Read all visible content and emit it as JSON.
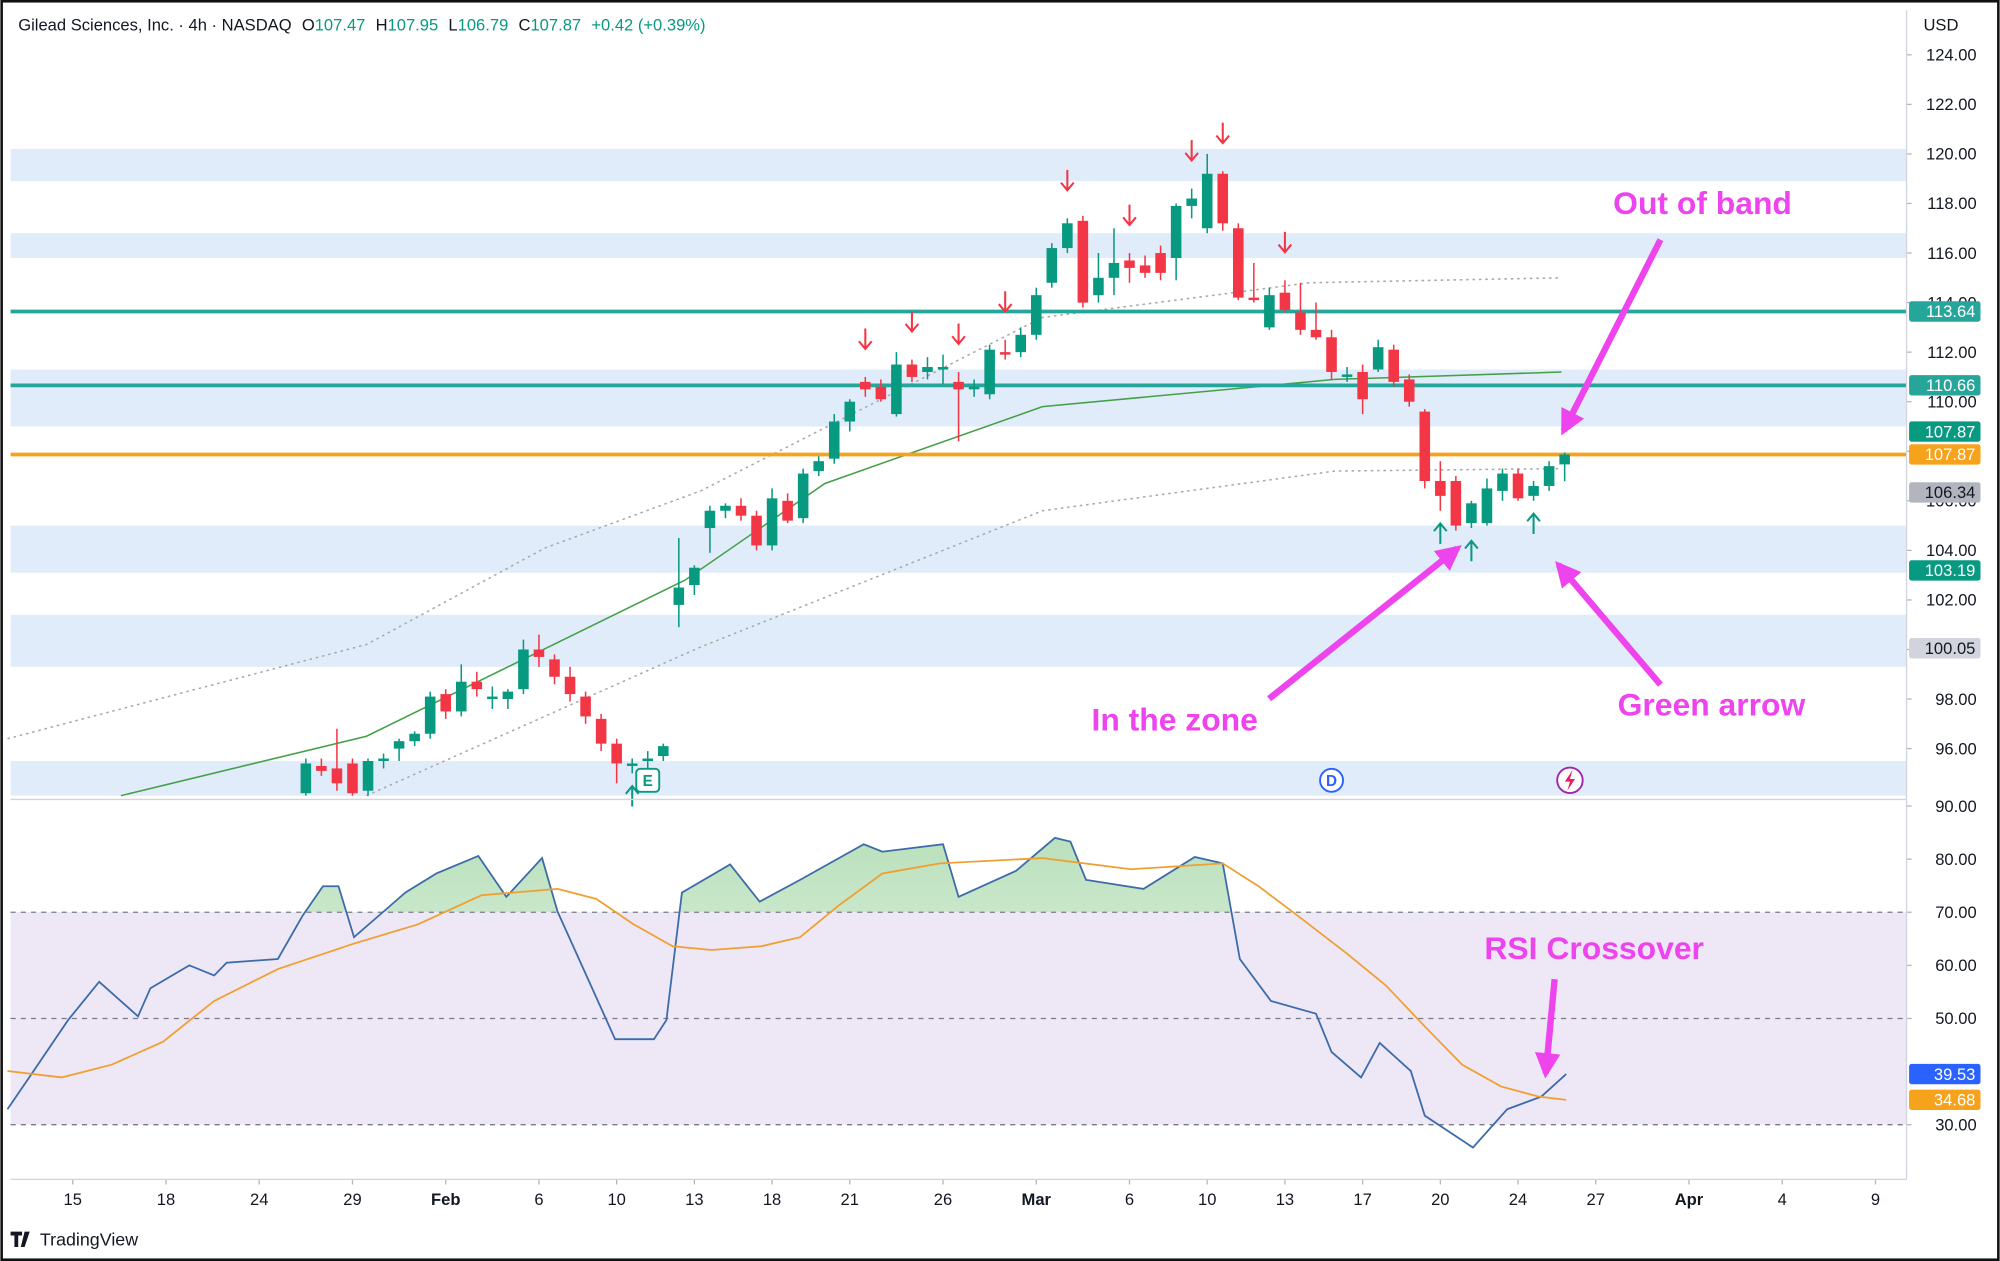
{
  "header": {
    "symbol": "Gilead Sciences, Inc. · 4h · NASDAQ",
    "o": "O",
    "h": "H",
    "l": "L",
    "c": "C",
    "change": "+0.42 (+0.39%)",
    "currency": "USD"
  },
  "footer": {
    "brand": "TradingView"
  },
  "chart_data": [
    {
      "type": "candlestick",
      "up_color": "#089981",
      "down_color": "#f23645",
      "xlim": [
        -4,
        118
      ],
      "ylim": [
        94,
        125.8
      ],
      "yticks": [
        {
          "value": 96,
          "label": "96.00"
        },
        {
          "value": 98,
          "label": "98.00"
        },
        {
          "value": 100,
          "label": "100.00"
        },
        {
          "value": 102,
          "label": "102.00"
        },
        {
          "value": 104,
          "label": "104.00"
        },
        {
          "value": 106,
          "label": "106.00"
        },
        {
          "value": 108,
          "label": "108.00"
        },
        {
          "value": 110,
          "label": "110.00"
        },
        {
          "value": 112,
          "label": "112.00"
        },
        {
          "value": 114,
          "label": "114.00"
        },
        {
          "value": 116,
          "label": "116.00"
        },
        {
          "value": 118,
          "label": "118.00"
        },
        {
          "value": 120,
          "label": "120.00"
        },
        {
          "value": 122,
          "label": "122.00"
        },
        {
          "value": 124,
          "label": "124.00"
        }
      ],
      "x": [
        15,
        16,
        17,
        18,
        19,
        20,
        21,
        22,
        23,
        24,
        25,
        26,
        27,
        28,
        29,
        30,
        31,
        32,
        33,
        34,
        35,
        36,
        37,
        38,
        39,
        40,
        41,
        42,
        43,
        44,
        45,
        46,
        47,
        48,
        49,
        50,
        51,
        52,
        53,
        54,
        55,
        56,
        57,
        58,
        59,
        60,
        61,
        62,
        63,
        64,
        65,
        66,
        67,
        68,
        69,
        70,
        71,
        72,
        73,
        74,
        75,
        76,
        77,
        78,
        79,
        80,
        81,
        82,
        83,
        84,
        85,
        86,
        87,
        88,
        89,
        90,
        91,
        92,
        93,
        94,
        95,
        96
      ],
      "ohlc": [
        [
          94.2,
          95.6,
          94.1,
          95.4
        ],
        [
          95.3,
          95.6,
          94.9,
          95.1
        ],
        [
          95.2,
          96.8,
          94.3,
          94.6
        ],
        [
          95.4,
          95.6,
          94.1,
          94.2
        ],
        [
          94.3,
          95.6,
          94.1,
          95.5
        ],
        [
          95.5,
          95.8,
          95.2,
          95.6
        ],
        [
          96.0,
          96.4,
          95.5,
          96.3
        ],
        [
          96.3,
          96.7,
          96.1,
          96.6
        ],
        [
          96.6,
          98.3,
          96.4,
          98.1
        ],
        [
          98.2,
          98.4,
          97.2,
          97.5
        ],
        [
          97.5,
          99.4,
          97.3,
          98.7
        ],
        [
          98.7,
          99.1,
          98.1,
          98.4
        ],
        [
          98.0,
          98.5,
          97.6,
          98.1
        ],
        [
          98.0,
          98.4,
          97.6,
          98.3
        ],
        [
          98.4,
          100.4,
          98.2,
          100.0
        ],
        [
          100.0,
          100.6,
          99.3,
          99.7
        ],
        [
          99.6,
          99.8,
          98.6,
          98.9
        ],
        [
          98.9,
          99.3,
          97.9,
          98.2
        ],
        [
          98.1,
          98.3,
          97.0,
          97.3
        ],
        [
          97.2,
          97.4,
          95.9,
          96.2
        ],
        [
          96.2,
          96.4,
          94.6,
          95.4
        ],
        [
          95.3,
          95.6,
          95.0,
          95.4
        ],
        [
          95.5,
          95.9,
          95.2,
          95.6
        ],
        [
          95.7,
          96.2,
          95.5,
          96.1
        ],
        [
          101.8,
          104.5,
          100.9,
          102.5
        ],
        [
          102.6,
          103.4,
          102.2,
          103.3
        ],
        [
          104.9,
          105.8,
          103.9,
          105.6
        ],
        [
          105.6,
          105.9,
          105.3,
          105.8
        ],
        [
          105.8,
          106.1,
          105.2,
          105.4
        ],
        [
          105.4,
          105.6,
          104.0,
          104.2
        ],
        [
          104.2,
          106.5,
          104.0,
          106.1
        ],
        [
          106.0,
          106.3,
          105.1,
          105.2
        ],
        [
          105.3,
          107.3,
          105.1,
          107.1
        ],
        [
          107.2,
          107.8,
          107.0,
          107.6
        ],
        [
          107.7,
          109.5,
          107.5,
          109.2
        ],
        [
          109.2,
          110.1,
          108.8,
          110.0
        ],
        [
          110.8,
          111.0,
          110.2,
          110.5
        ],
        [
          110.6,
          110.9,
          110.0,
          110.1
        ],
        [
          109.5,
          112.0,
          109.4,
          111.5
        ],
        [
          111.5,
          111.7,
          110.8,
          111.0
        ],
        [
          111.2,
          111.8,
          110.9,
          111.4
        ],
        [
          111.3,
          111.9,
          110.7,
          111.4
        ],
        [
          110.8,
          111.2,
          108.4,
          110.5
        ],
        [
          110.5,
          110.9,
          110.2,
          110.6
        ],
        [
          110.3,
          112.3,
          110.1,
          112.1
        ],
        [
          112.0,
          112.5,
          111.7,
          111.9
        ],
        [
          112.0,
          113.0,
          111.8,
          112.7
        ],
        [
          112.7,
          114.6,
          112.5,
          114.3
        ],
        [
          114.8,
          116.4,
          114.6,
          116.2
        ],
        [
          116.2,
          117.4,
          116.0,
          117.2
        ],
        [
          117.3,
          117.5,
          113.8,
          114.0
        ],
        [
          114.3,
          116.0,
          114.0,
          115.0
        ],
        [
          115.0,
          117.0,
          114.3,
          115.6
        ],
        [
          115.7,
          116.0,
          114.8,
          115.4
        ],
        [
          115.5,
          115.9,
          115.0,
          115.2
        ],
        [
          116.0,
          116.3,
          114.9,
          115.2
        ],
        [
          115.8,
          118.0,
          114.9,
          117.9
        ],
        [
          117.9,
          118.6,
          117.4,
          118.2
        ],
        [
          117.0,
          120.0,
          116.8,
          119.2
        ],
        [
          119.2,
          119.3,
          116.9,
          117.2
        ],
        [
          117.0,
          117.2,
          114.1,
          114.2
        ],
        [
          114.2,
          115.6,
          114.0,
          114.1
        ],
        [
          113.0,
          114.6,
          112.9,
          114.3
        ],
        [
          114.4,
          114.9,
          113.6,
          113.7
        ],
        [
          113.6,
          114.8,
          112.7,
          112.9
        ],
        [
          112.9,
          114.0,
          112.5,
          112.6
        ],
        [
          112.6,
          112.9,
          110.9,
          111.2
        ],
        [
          111.0,
          111.4,
          110.8,
          111.1
        ],
        [
          111.2,
          111.5,
          109.5,
          110.1
        ],
        [
          111.3,
          112.5,
          111.2,
          112.2
        ],
        [
          112.1,
          112.3,
          110.6,
          110.8
        ],
        [
          110.9,
          111.1,
          109.8,
          110.0
        ],
        [
          109.6,
          109.7,
          106.5,
          106.8
        ],
        [
          106.8,
          107.6,
          105.6,
          106.2
        ],
        [
          106.8,
          107.0,
          104.8,
          105.0
        ],
        [
          105.1,
          106.0,
          104.9,
          105.9
        ],
        [
          105.1,
          106.9,
          105.0,
          106.5
        ],
        [
          106.4,
          107.3,
          106.0,
          107.1
        ],
        [
          107.1,
          107.3,
          106.0,
          106.1
        ],
        [
          106.2,
          106.8,
          106.0,
          106.6
        ],
        [
          106.6,
          107.6,
          106.4,
          107.4
        ],
        [
          107.47,
          107.95,
          106.79,
          107.87
        ]
      ],
      "zone_color": "#e1ecfb",
      "zones": [
        [
          118.9,
          120.2
        ],
        [
          115.8,
          116.8
        ],
        [
          109.0,
          111.3
        ],
        [
          103.1,
          105.0
        ],
        [
          99.3,
          101.4
        ],
        [
          94.1,
          95.5
        ]
      ],
      "levels": [
        {
          "value": 113.64,
          "color": "#26a69a"
        },
        {
          "value": 110.66,
          "color": "#26a69a"
        },
        {
          "value": 107.87,
          "color": "#f7a21b"
        }
      ],
      "price_tags": [
        {
          "value": 106.34,
          "color": "#b2b5be",
          "text_color": "#131722"
        },
        {
          "value": 103.19,
          "color": "#089981",
          "text_color": "#ffffff"
        },
        {
          "value": 100.05,
          "color": "#d1d4dc",
          "text_color": "#131722"
        }
      ],
      "bands": [
        {
          "color": "#a8a8a8",
          "x": [
            -4.2,
            18.9,
            30.4,
            40.4,
            62.4,
            79.6,
            95.8
          ],
          "values": [
            96.4,
            100.2,
            104.1,
            106.4,
            113.4,
            114.8,
            115.0
          ]
        },
        {
          "color": "#43a047",
          "x": [
            3.1,
            18.9,
            39.4,
            48.4,
            62.4,
            81.2,
            95.8
          ],
          "values": [
            94.1,
            96.5,
            102.8,
            106.7,
            109.8,
            110.9,
            111.2
          ]
        },
        {
          "color": "#a8a8a8",
          "x": [
            18.9,
            40.4,
            62.4,
            81.2,
            95.8
          ],
          "values": [
            94.1,
            100.1,
            105.6,
            107.2,
            107.3
          ]
        }
      ],
      "signals": {
        "down": [
          51,
          54,
          57,
          60,
          64,
          68,
          72,
          74,
          78
        ],
        "up": [
          36,
          88,
          90,
          94
        ]
      },
      "events": [
        {
          "x": 37,
          "label": "E",
          "color": "#089981"
        },
        {
          "x": 81,
          "label": "D",
          "color": "#2962ff"
        }
      ],
      "annotations": [
        "Out of band",
        "In the zone",
        "Green arrow",
        "RSI Crossover"
      ]
    },
    {
      "type": "line",
      "xlim": [
        -4,
        118
      ],
      "ylim": [
        19.7,
        91
      ],
      "xticks": [
        {
          "value": 0,
          "label": "15"
        },
        {
          "value": 6,
          "label": "18"
        },
        {
          "value": 12,
          "label": "24"
        },
        {
          "value": 18,
          "label": "29"
        },
        {
          "value": 24,
          "label": "Feb"
        },
        {
          "value": 30,
          "label": "6"
        },
        {
          "value": 35,
          "label": "10"
        },
        {
          "value": 40,
          "label": "13"
        },
        {
          "value": 45,
          "label": "18"
        },
        {
          "value": 50,
          "label": "21"
        },
        {
          "value": 56,
          "label": "26"
        },
        {
          "value": 62,
          "label": "Mar"
        },
        {
          "value": 68,
          "label": "6"
        },
        {
          "value": 73,
          "label": "10"
        },
        {
          "value": 78,
          "label": "13"
        },
        {
          "value": 83,
          "label": "17"
        },
        {
          "value": 88,
          "label": "20"
        },
        {
          "value": 93,
          "label": "24"
        },
        {
          "value": 98,
          "label": "27"
        },
        {
          "value": 104,
          "label": "Apr"
        },
        {
          "value": 110,
          "label": "4"
        },
        {
          "value": 116,
          "label": "9"
        }
      ],
      "yticks": [
        {
          "value": 30,
          "label": "30.00"
        },
        {
          "value": 50,
          "label": "50.00"
        },
        {
          "value": 60,
          "label": "60.00"
        },
        {
          "value": 70,
          "label": "70.00"
        },
        {
          "value": 80,
          "label": "80.00"
        },
        {
          "value": 90,
          "label": "90.00"
        }
      ],
      "band": [
        30,
        70
      ],
      "band_color": "#ede7f6",
      "reference_lines": [
        30,
        50,
        70
      ],
      "series": [
        {
          "color": "#3d6ba8",
          "x": [
            -4.2,
            -2.8,
            -0.3,
            1.7,
            4.2,
            5.0,
            7.5,
            9.1,
            9.9,
            13.2,
            14.8,
            16.1,
            17.1,
            18.1,
            21.4,
            23.4,
            26.1,
            27.9,
            30.2,
            31.2,
            34.9,
            37.4,
            38.2,
            39.2,
            42.3,
            44.2,
            46.8,
            50.9,
            52.1,
            56.0,
            57.0,
            60.7,
            63.2,
            64.2,
            65.2,
            68.9,
            72.2,
            74.0,
            75.1,
            77.1,
            80.0,
            81.0,
            82.9,
            84.1,
            86.1,
            87.0,
            90.1,
            92.3,
            94.5,
            96.1
          ],
          "values": [
            32.9,
            38.9,
            49.7,
            56.9,
            50.4,
            55.7,
            60.0,
            58.1,
            60.5,
            61.2,
            69.4,
            74.9,
            74.9,
            65.3,
            73.7,
            77.3,
            80.6,
            72.9,
            80.2,
            70.1,
            46.1,
            46.1,
            49.7,
            73.7,
            79.0,
            72.0,
            76.1,
            82.8,
            81.4,
            82.8,
            72.9,
            77.8,
            84.0,
            83.3,
            76.1,
            74.4,
            80.4,
            79.2,
            61.2,
            53.3,
            50.9,
            43.7,
            38.9,
            45.4,
            40.1,
            31.7,
            25.7,
            32.9,
            35.3,
            39.53
          ]
        },
        {
          "color": "#f0a030",
          "x": [
            -4.2,
            -0.7,
            2.5,
            5.8,
            9.1,
            13.2,
            18.1,
            22.2,
            26.3,
            31.2,
            33.7,
            36.1,
            38.6,
            41.1,
            44.3,
            46.8,
            49.3,
            52.1,
            55.8,
            62.4,
            68.1,
            74.0,
            76.3,
            78.8,
            82.0,
            84.5,
            87.0,
            89.4,
            91.9,
            94.3,
            96.1
          ],
          "values": [
            40.1,
            38.9,
            41.3,
            45.6,
            53.3,
            59.3,
            64.1,
            67.7,
            73.2,
            74.4,
            72.5,
            67.7,
            63.6,
            62.9,
            63.6,
            65.3,
            71.3,
            77.3,
            79.2,
            80.2,
            78.1,
            79.2,
            74.9,
            69.4,
            62.2,
            56.2,
            48.5,
            41.3,
            37.2,
            35.3,
            34.68
          ]
        }
      ],
      "tag_colors": [
        "#2962ff",
        "#f7a21b"
      ]
    }
  ]
}
